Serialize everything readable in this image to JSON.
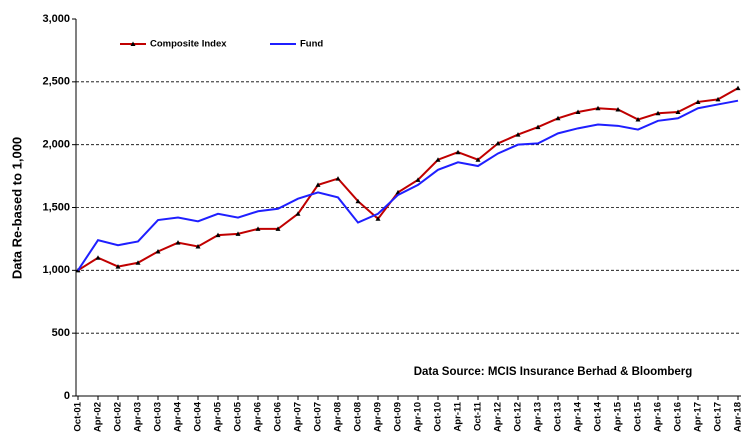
{
  "chart_data": {
    "type": "line",
    "y_label": "Data Re-based to 1,000",
    "annotation": "Data Source: MCIS Insurance Berhad & Bloomberg",
    "categories": [
      "Oct-01",
      "Apr-02",
      "Oct-02",
      "Apr-03",
      "Oct-03",
      "Apr-04",
      "Oct-04",
      "Apr-05",
      "Oct-05",
      "Apr-06",
      "Oct-06",
      "Apr-07",
      "Oct-07",
      "Apr-08",
      "Oct-08",
      "Apr-09",
      "Oct-09",
      "Apr-10",
      "Oct-10",
      "Apr-11",
      "Oct-11",
      "Apr-12",
      "Oct-12",
      "Apr-13",
      "Oct-13",
      "Apr-14",
      "Oct-14",
      "Apr-15",
      "Oct-15",
      "Apr-16",
      "Oct-16",
      "Apr-17",
      "Oct-17",
      "Apr-18"
    ],
    "series": [
      {
        "name": "Composite Index",
        "color": "#c00000",
        "marker_color": "#000000",
        "values": [
          1000,
          1100,
          1030,
          1060,
          1150,
          1220,
          1190,
          1280,
          1290,
          1330,
          1330,
          1450,
          1680,
          1730,
          1550,
          1410,
          1620,
          1720,
          1880,
          1940,
          1880,
          2010,
          2080,
          2140,
          2210,
          2260,
          2290,
          2280,
          2200,
          2250,
          2260,
          2340,
          2360,
          2450
        ]
      },
      {
        "name": "Fund",
        "color": "#1f1fff",
        "values": [
          1000,
          1240,
          1200,
          1230,
          1400,
          1420,
          1390,
          1450,
          1420,
          1470,
          1490,
          1570,
          1620,
          1580,
          1380,
          1450,
          1600,
          1680,
          1800,
          1860,
          1830,
          1930,
          2000,
          2010,
          2090,
          2130,
          2160,
          2150,
          2120,
          2190,
          2210,
          2290,
          2320,
          2350
        ]
      }
    ],
    "ylim": [
      0,
      3000
    ],
    "yticks": [
      0,
      500,
      {
        "value": 1000,
        "label": "1,000"
      },
      {
        "value": 1500,
        "label": "1,500"
      },
      {
        "value": 2000,
        "label": "2,000"
      },
      {
        "value": 2500,
        "label": "2,500"
      },
      {
        "value": 3000,
        "label": "3,000"
      }
    ],
    "grid": true,
    "legend": "top-left"
  }
}
